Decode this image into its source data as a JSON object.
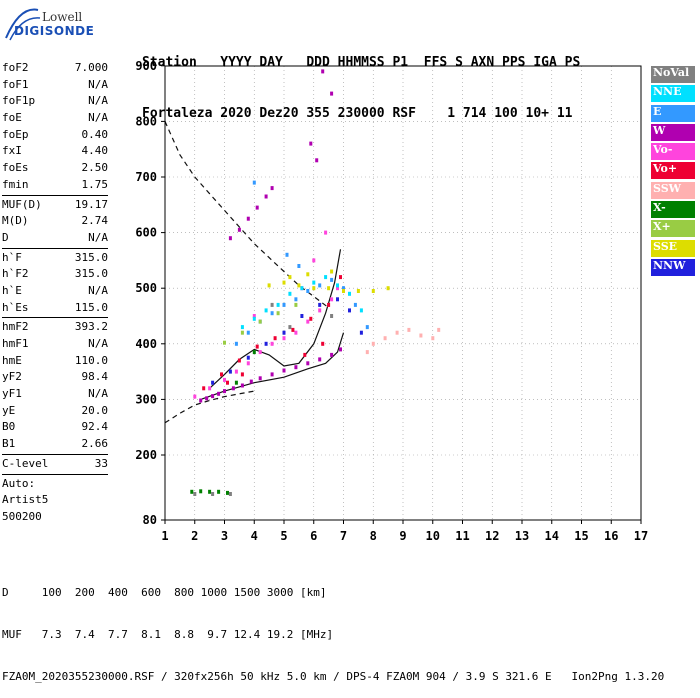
{
  "logo": {
    "line1": "Lowell",
    "line2": "DIGISONDE"
  },
  "header": {
    "line1": "Station   YYYY DAY   DDD HHMMSS P1  FFS S AXN PPS IGA PS",
    "line2": "Fortaleza 2020 Dez20 355 230000 RSF    1 714 100 10+ 11"
  },
  "params": [
    [
      {
        "k": "foF2",
        "v": "7.000"
      },
      {
        "k": "foF1",
        "v": "N/A"
      },
      {
        "k": "foF1p",
        "v": "N/A"
      },
      {
        "k": "foE",
        "v": "N/A"
      },
      {
        "k": "foEp",
        "v": "0.40"
      },
      {
        "k": "fxI",
        "v": "4.40"
      },
      {
        "k": "foEs",
        "v": "2.50"
      },
      {
        "k": "fmin",
        "v": "1.75"
      }
    ],
    [
      {
        "k": "MUF(D)",
        "v": "19.17"
      },
      {
        "k": "M(D)",
        "v": "2.74"
      },
      {
        "k": "D",
        "v": "N/A"
      }
    ],
    [
      {
        "k": "h`F",
        "v": "315.0"
      },
      {
        "k": "h`F2",
        "v": "315.0"
      },
      {
        "k": "h`E",
        "v": "N/A"
      },
      {
        "k": "h`Es",
        "v": "115.0"
      }
    ],
    [
      {
        "k": "hmF2",
        "v": "393.2"
      },
      {
        "k": "hmF1",
        "v": "N/A"
      },
      {
        "k": "hmE",
        "v": "110.0"
      },
      {
        "k": "yF2",
        "v": "98.4"
      },
      {
        "k": "yF1",
        "v": "N/A"
      },
      {
        "k": "yE",
        "v": "20.0"
      },
      {
        "k": "B0",
        "v": "92.4"
      },
      {
        "k": "B1",
        "v": "2.66"
      }
    ],
    [
      {
        "k": "C-level",
        "v": "33"
      }
    ]
  ],
  "auto": {
    "line1": "Auto:",
    "line2": "Artist5",
    "line3": "500200"
  },
  "footer": {
    "line1": "D     100  200  400  600  800 1000 1500 3000 [km]",
    "line2": "MUF   7.3  7.4  7.7  8.1  8.8  9.7 12.4 19.2 [MHz]",
    "line3": "FZA0M_2020355230000.RSF / 320fx256h 50 kHz 5.0 km / DPS-4 FZA0M 904 / 3.9 S 321.6 E   Ion2Png 1.3.20"
  },
  "legend": [
    {
      "label": "NoVal",
      "color": "#808080"
    },
    {
      "label": "NNE",
      "color": "#00e0ff"
    },
    {
      "label": "E",
      "color": "#3399ff"
    },
    {
      "label": "W",
      "color": "#b000b0"
    },
    {
      "label": "Vo-",
      "color": "#ff44dd"
    },
    {
      "label": "Vo+",
      "color": "#ee0033"
    },
    {
      "label": "SSW",
      "color": "#ffb0b0"
    },
    {
      "label": "X-",
      "color": "#008000"
    },
    {
      "label": "X+",
      "color": "#99cc44"
    },
    {
      "label": "SSE",
      "color": "#dddd00"
    },
    {
      "label": "NNW",
      "color": "#2020dd"
    }
  ],
  "chart_data": {
    "type": "scatter",
    "title": "",
    "xlabel": "",
    "ylabel": "",
    "x_ticks": [
      "1",
      "2",
      "3",
      "4",
      "5",
      "6",
      "7",
      "8",
      "9",
      "10",
      "11",
      "12",
      "13",
      "14",
      "15",
      "16",
      "17"
    ],
    "y_ticks": [
      "80",
      "200",
      "300",
      "400",
      "500",
      "600",
      "700",
      "800",
      "900"
    ],
    "xlim": [
      1,
      17
    ],
    "ylim": [
      80,
      900
    ],
    "grid": "dotted",
    "series": [
      {
        "name": "W",
        "color": "#b000b0",
        "points": [
          [
            2.2,
            298
          ],
          [
            2.4,
            302
          ],
          [
            2.6,
            306
          ],
          [
            2.8,
            310
          ],
          [
            3.0,
            315
          ],
          [
            3.3,
            320
          ],
          [
            3.6,
            325
          ],
          [
            3.9,
            332
          ],
          [
            4.2,
            338
          ],
          [
            4.6,
            345
          ],
          [
            5.0,
            352
          ],
          [
            5.4,
            358
          ],
          [
            5.8,
            365
          ],
          [
            6.2,
            372
          ],
          [
            6.6,
            380
          ],
          [
            6.9,
            390
          ],
          [
            3.2,
            590
          ],
          [
            3.5,
            605
          ],
          [
            3.8,
            625
          ],
          [
            4.1,
            645
          ],
          [
            4.4,
            665
          ],
          [
            4.6,
            680
          ],
          [
            6.3,
            890
          ],
          [
            6.6,
            850
          ],
          [
            5.9,
            760
          ],
          [
            6.1,
            730
          ]
        ]
      },
      {
        "name": "Vo-",
        "color": "#ff44dd",
        "points": [
          [
            2.0,
            305
          ],
          [
            2.5,
            320
          ],
          [
            3.0,
            335
          ],
          [
            3.4,
            350
          ],
          [
            3.8,
            365
          ],
          [
            4.2,
            385
          ],
          [
            4.6,
            400
          ],
          [
            5.0,
            410
          ],
          [
            5.4,
            420
          ],
          [
            5.8,
            440
          ],
          [
            6.2,
            460
          ],
          [
            6.6,
            480
          ],
          [
            6.8,
            500
          ],
          [
            4.0,
            450
          ],
          [
            5.6,
            500
          ],
          [
            6.0,
            550
          ],
          [
            6.4,
            600
          ]
        ]
      },
      {
        "name": "Vo+",
        "color": "#ee0033",
        "points": [
          [
            2.3,
            320
          ],
          [
            2.9,
            345
          ],
          [
            3.5,
            370
          ],
          [
            4.1,
            395
          ],
          [
            4.7,
            410
          ],
          [
            5.3,
            425
          ],
          [
            5.9,
            445
          ],
          [
            6.5,
            470
          ],
          [
            6.9,
            520
          ],
          [
            5.7,
            380
          ],
          [
            6.3,
            400
          ],
          [
            3.1,
            330
          ],
          [
            3.6,
            345
          ]
        ]
      },
      {
        "name": "E",
        "color": "#3399ff",
        "points": [
          [
            3.4,
            400
          ],
          [
            3.8,
            420
          ],
          [
            4.2,
            440
          ],
          [
            4.6,
            455
          ],
          [
            5.0,
            470
          ],
          [
            5.4,
            480
          ],
          [
            5.8,
            495
          ],
          [
            6.2,
            505
          ],
          [
            6.6,
            515
          ],
          [
            7.0,
            500
          ],
          [
            7.4,
            470
          ],
          [
            7.8,
            430
          ],
          [
            4.0,
            690
          ],
          [
            5.1,
            560
          ],
          [
            5.5,
            540
          ]
        ]
      },
      {
        "name": "NNE",
        "color": "#00e0ff",
        "points": [
          [
            3.6,
            430
          ],
          [
            4.0,
            445
          ],
          [
            4.4,
            460
          ],
          [
            4.8,
            470
          ],
          [
            5.2,
            490
          ],
          [
            5.6,
            500
          ],
          [
            6.0,
            510
          ],
          [
            6.4,
            520
          ],
          [
            6.8,
            505
          ],
          [
            7.2,
            490
          ],
          [
            7.6,
            460
          ]
        ]
      },
      {
        "name": "SSE",
        "color": "#dddd00",
        "points": [
          [
            4.5,
            505
          ],
          [
            5.0,
            510
          ],
          [
            5.5,
            505
          ],
          [
            6.0,
            500
          ],
          [
            6.5,
            500
          ],
          [
            7.0,
            495
          ],
          [
            7.5,
            495
          ],
          [
            8.0,
            495
          ],
          [
            8.5,
            500
          ],
          [
            5.2,
            520
          ],
          [
            5.8,
            525
          ],
          [
            6.6,
            530
          ]
        ]
      },
      {
        "name": "SSW",
        "color": "#ffb0b0",
        "points": [
          [
            8.0,
            400
          ],
          [
            8.4,
            410
          ],
          [
            8.8,
            420
          ],
          [
            9.2,
            425
          ],
          [
            9.6,
            415
          ],
          [
            10.0,
            410
          ],
          [
            10.2,
            425
          ],
          [
            7.8,
            385
          ]
        ]
      },
      {
        "name": "NNW",
        "color": "#2020dd",
        "points": [
          [
            2.6,
            330
          ],
          [
            3.2,
            350
          ],
          [
            3.8,
            375
          ],
          [
            4.4,
            400
          ],
          [
            5.0,
            420
          ],
          [
            5.6,
            450
          ],
          [
            6.2,
            470
          ],
          [
            6.8,
            480
          ],
          [
            7.2,
            460
          ],
          [
            7.6,
            420
          ]
        ]
      },
      {
        "name": "X-",
        "color": "#008000",
        "points": [
          [
            1.9,
            132
          ],
          [
            2.2,
            133
          ],
          [
            2.5,
            132
          ],
          [
            2.8,
            132
          ],
          [
            3.1,
            130
          ],
          [
            3.4,
            330
          ],
          [
            4.0,
            385
          ]
        ]
      },
      {
        "name": "X+",
        "color": "#99cc44",
        "points": [
          [
            3.0,
            402
          ],
          [
            3.6,
            420
          ],
          [
            4.2,
            440
          ],
          [
            4.8,
            455
          ],
          [
            5.4,
            470
          ]
        ]
      },
      {
        "name": "NoVal",
        "color": "#808080",
        "points": [
          [
            2.0,
            128
          ],
          [
            2.6,
            128
          ],
          [
            3.2,
            128
          ],
          [
            4.6,
            470
          ],
          [
            5.2,
            430
          ],
          [
            6.6,
            450
          ]
        ]
      }
    ],
    "curves": [
      {
        "style": "dashed",
        "points": [
          [
            1.0,
            800
          ],
          [
            1.5,
            740
          ],
          [
            2.0,
            700
          ],
          [
            2.5,
            670
          ],
          [
            3.0,
            640
          ],
          [
            3.5,
            610
          ],
          [
            4.0,
            580
          ],
          [
            4.5,
            555
          ],
          [
            5.0,
            530
          ],
          [
            5.5,
            505
          ],
          [
            6.0,
            485
          ],
          [
            6.5,
            465
          ]
        ]
      },
      {
        "style": "dashed",
        "points": [
          [
            1.0,
            258
          ],
          [
            1.5,
            275
          ],
          [
            2.0,
            290
          ],
          [
            2.5,
            298
          ],
          [
            3.0,
            305
          ],
          [
            3.5,
            310
          ],
          [
            4.0,
            315
          ]
        ]
      },
      {
        "style": "solid",
        "points": [
          [
            2.2,
            300
          ],
          [
            3.0,
            315
          ],
          [
            4.0,
            330
          ],
          [
            5.0,
            340
          ],
          [
            5.8,
            355
          ],
          [
            6.4,
            365
          ],
          [
            6.8,
            385
          ],
          [
            7.0,
            420
          ]
        ]
      },
      {
        "style": "solid",
        "points": [
          [
            2.5,
            320
          ],
          [
            3.0,
            345
          ],
          [
            3.5,
            372
          ],
          [
            4.0,
            390
          ],
          [
            4.5,
            380
          ],
          [
            5.0,
            360
          ],
          [
            5.5,
            365
          ],
          [
            6.0,
            400
          ],
          [
            6.4,
            455
          ],
          [
            6.7,
            510
          ],
          [
            6.9,
            570
          ]
        ]
      }
    ]
  }
}
